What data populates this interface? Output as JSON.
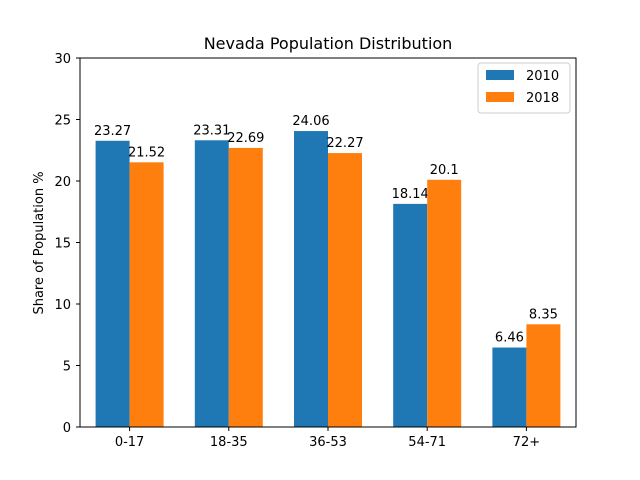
{
  "chart_data": {
    "type": "bar",
    "title": "Nevada Population Distribution",
    "xlabel": "",
    "ylabel": "Share of Population %",
    "categories": [
      "0-17",
      "18-35",
      "36-53",
      "54-71",
      "72+"
    ],
    "series": [
      {
        "name": "2010",
        "values": [
          23.27,
          23.31,
          24.06,
          18.14,
          6.46
        ],
        "color": "#1f77b4"
      },
      {
        "name": "2018",
        "values": [
          21.52,
          22.69,
          22.27,
          20.1,
          8.35
        ],
        "color": "#ff7f0e"
      }
    ],
    "ylim": [
      0,
      30
    ],
    "yticks": [
      0,
      5,
      10,
      15,
      20,
      25,
      30
    ],
    "grid": false,
    "legend_position": "top-right"
  }
}
